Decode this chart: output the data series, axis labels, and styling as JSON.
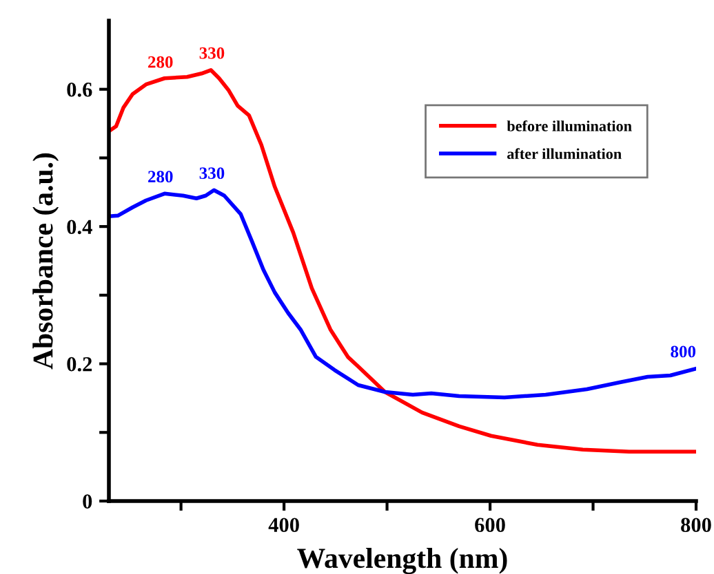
{
  "chart_data": {
    "type": "line",
    "xlabel": "Wavelength (nm)",
    "ylabel": "Absorbance (a.u.)",
    "xlim": [
      230,
      800
    ],
    "ylim": [
      0,
      0.7
    ],
    "xticks": [
      {
        "value": 300,
        "label": null
      },
      400,
      {
        "value": 500,
        "label": null
      },
      600,
      {
        "value": 700,
        "label": null
      },
      800
    ],
    "yticks": [
      0,
      {
        "value": 0.1,
        "label": null
      },
      0.2,
      {
        "value": 0.3,
        "label": null
      },
      0.4,
      {
        "value": 0.5,
        "label": null
      },
      0.6
    ],
    "grid": false,
    "legend": "top right",
    "marker": "none",
    "line_style": "solid",
    "series": [
      {
        "name": "before illumination",
        "color": "#ff0000",
        "x": [
          230,
          237,
          244,
          253,
          266,
          284,
          306,
          320,
          329,
          337,
          346,
          355,
          366,
          378,
          391,
          409,
          427,
          445,
          462,
          472,
          498,
          534,
          570,
          601,
          646,
          690,
          735,
          800
        ],
        "values": [
          0.539,
          0.546,
          0.573,
          0.593,
          0.607,
          0.616,
          0.618,
          0.623,
          0.628,
          0.616,
          0.599,
          0.576,
          0.562,
          0.519,
          0.458,
          0.391,
          0.31,
          0.25,
          0.21,
          0.196,
          0.159,
          0.129,
          0.109,
          0.095,
          0.082,
          0.075,
          0.072,
          0.072
        ]
      },
      {
        "name": "after illumination",
        "color": "#0000ff",
        "x": [
          230,
          239,
          253,
          266,
          284,
          302,
          315,
          324,
          332,
          342,
          358,
          369,
          380,
          391,
          404,
          416,
          431,
          449,
          472,
          498,
          525,
          543,
          570,
          614,
          654,
          694,
          726,
          753,
          775,
          800
        ],
        "values": [
          0.415,
          0.416,
          0.428,
          0.438,
          0.448,
          0.445,
          0.441,
          0.445,
          0.453,
          0.445,
          0.418,
          0.378,
          0.337,
          0.304,
          0.274,
          0.25,
          0.21,
          0.191,
          0.169,
          0.159,
          0.155,
          0.157,
          0.153,
          0.151,
          0.155,
          0.163,
          0.173,
          0.181,
          0.183,
          0.193
        ]
      }
    ],
    "annotations": [
      {
        "text": "280",
        "x": 280,
        "y": 0.615
      },
      {
        "text": "330",
        "x": 330,
        "y": 0.628
      },
      {
        "text": "280",
        "x": 280,
        "y": 0.448
      },
      {
        "text": "330",
        "x": 330,
        "y": 0.453
      },
      {
        "text": "800",
        "x": 800,
        "y": 0.193
      }
    ]
  }
}
